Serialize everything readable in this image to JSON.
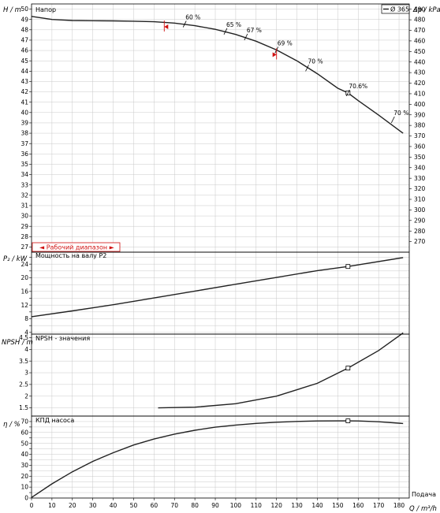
{
  "legend_label": "Ø 365",
  "xlabel": "Q / m³/h",
  "xlabel_side": "Подача",
  "operating_range_label": "◄ Рабочий диапазон ►",
  "chart_data": [
    {
      "type": "line",
      "title": "Напор",
      "ylabel": "H / m",
      "y2label": "Δp / kPa",
      "xlim": [
        0,
        185
      ],
      "ylim": [
        26.5,
        50.5
      ],
      "y2lim": [
        260,
        495
      ],
      "x_ticks": [
        0,
        10,
        20,
        30,
        40,
        50,
        60,
        70,
        80,
        90,
        100,
        110,
        120,
        130,
        140,
        150,
        160,
        170,
        180
      ],
      "y_ticks": [
        27,
        28,
        29,
        30,
        31,
        32,
        33,
        34,
        35,
        36,
        37,
        38,
        39,
        40,
        41,
        42,
        43,
        44,
        45,
        46,
        47,
        48,
        49,
        50
      ],
      "y2_ticks": [
        270,
        280,
        290,
        300,
        310,
        320,
        330,
        340,
        350,
        360,
        370,
        380,
        390,
        400,
        410,
        420,
        430,
        440,
        450,
        460,
        470,
        480,
        490
      ],
      "series": [
        {
          "name": "Ø 365",
          "x": [
            0,
            10,
            20,
            30,
            40,
            50,
            60,
            70,
            80,
            90,
            100,
            110,
            120,
            130,
            140,
            150,
            155,
            160,
            170,
            182
          ],
          "y": [
            49.3,
            49.0,
            48.9,
            48.88,
            48.86,
            48.83,
            48.78,
            48.65,
            48.4,
            48.05,
            47.55,
            46.9,
            46.05,
            45.0,
            43.75,
            42.35,
            41.9,
            41.15,
            39.75,
            38.0
          ]
        }
      ],
      "efficiency_labels": [
        {
          "text": "60 %",
          "x": 75,
          "y": 48.55
        },
        {
          "text": "65 %",
          "x": 95,
          "y": 47.85
        },
        {
          "text": "67 %",
          "x": 105,
          "y": 47.3
        },
        {
          "text": "69 %",
          "x": 120,
          "y": 46.05
        },
        {
          "text": "70 %",
          "x": 135,
          "y": 44.3
        },
        {
          "text": "70.6%",
          "x": 155,
          "y": 41.9
        },
        {
          "text": "70 %",
          "x": 177,
          "y": 39.3
        }
      ],
      "duty_point": {
        "x": 155,
        "y": 41.9
      },
      "operating_range_markers": [
        {
          "x": 65,
          "y": 48.75
        },
        {
          "x": 120,
          "y": 46.05
        }
      ]
    },
    {
      "type": "line",
      "title": "Мощность на валу P2",
      "ylabel": "P₂ / kW",
      "xlim": [
        0,
        185
      ],
      "ylim": [
        3.5,
        27.5
      ],
      "y_ticks": [
        4,
        6,
        8,
        10,
        12,
        14,
        16,
        18,
        20,
        22,
        24,
        26
      ],
      "y_tick_labels": [
        4,
        "",
        8,
        "",
        12,
        "",
        16,
        "",
        20,
        "",
        24,
        ""
      ],
      "series": [
        {
          "name": "Ø 365",
          "x": [
            0,
            20,
            40,
            60,
            80,
            100,
            120,
            140,
            155,
            182
          ],
          "y": [
            8.6,
            10.3,
            12.1,
            14.1,
            16.1,
            18.1,
            20.1,
            22.1,
            23.3,
            25.9
          ]
        }
      ],
      "duty_point": {
        "x": 155,
        "y": 23.3
      }
    },
    {
      "type": "line",
      "title": "NPSH - значения",
      "ylabel": "NPSH / m",
      "xlim": [
        0,
        185
      ],
      "ylim": [
        1.15,
        4.65
      ],
      "y_ticks": [
        1.5,
        2,
        2.5,
        3,
        3.5,
        4,
        4.5
      ],
      "y_tick_labels": [
        "1.5",
        "2",
        "2.5",
        "3",
        "3.5",
        "4",
        "4.5"
      ],
      "series": [
        {
          "name": "Ø 365",
          "x": [
            62,
            80,
            100,
            120,
            140,
            155,
            170,
            182
          ],
          "y": [
            1.5,
            1.53,
            1.68,
            2.0,
            2.55,
            3.2,
            3.95,
            4.7
          ]
        }
      ],
      "duty_point": {
        "x": 155,
        "y": 3.2
      }
    },
    {
      "type": "line",
      "title": "КПД насоса",
      "ylabel": "η / %",
      "xlim": [
        0,
        185
      ],
      "ylim": [
        0,
        75
      ],
      "y_ticks": [
        0,
        5,
        10,
        15,
        20,
        25,
        30,
        35,
        40,
        45,
        50,
        55,
        60,
        65,
        70
      ],
      "y_tick_labels": [
        "0",
        "",
        "10",
        "",
        "20",
        "",
        "30",
        "",
        "40",
        "",
        "50",
        "",
        "60",
        "",
        "70"
      ],
      "series": [
        {
          "name": "Ø 365",
          "x": [
            0,
            10,
            20,
            30,
            40,
            50,
            60,
            70,
            80,
            90,
            100,
            110,
            120,
            130,
            140,
            150,
            155,
            160,
            170,
            182
          ],
          "y": [
            0.5,
            13,
            24,
            33.5,
            41.5,
            48.5,
            54,
            58.5,
            62,
            64.8,
            66.8,
            68.3,
            69.4,
            70.1,
            70.5,
            70.6,
            70.6,
            70.5,
            69.8,
            68.2
          ]
        }
      ],
      "duty_point": {
        "x": 155,
        "y": 70.6
      }
    }
  ]
}
